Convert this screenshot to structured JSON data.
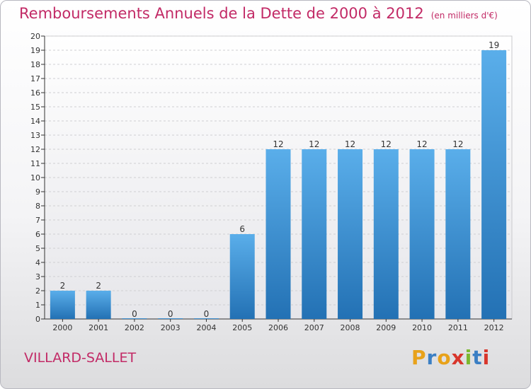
{
  "chart_data": {
    "type": "bar",
    "title": "Remboursements Annuels de la Dette de 2000 à 2012",
    "unit": "(en milliers d'€)",
    "categories": [
      "2000",
      "2001",
      "2002",
      "2003",
      "2004",
      "2005",
      "2006",
      "2007",
      "2008",
      "2009",
      "2010",
      "2011",
      "2012"
    ],
    "values": [
      2,
      2,
      0,
      0,
      0,
      6,
      12,
      12,
      12,
      12,
      12,
      12,
      19
    ],
    "ylim": [
      0,
      20
    ],
    "yticks": [
      "0",
      "1",
      "2",
      "3",
      "4",
      "5",
      "6",
      "7",
      "8",
      "9",
      "10",
      "11",
      "12",
      "13",
      "14",
      "15",
      "16",
      "17",
      "18",
      "19",
      "20"
    ],
    "grid": true,
    "bar_color": "#3d8fd6"
  },
  "footer": {
    "city": "VILLARD-SALLET",
    "logo": "Proxiti"
  },
  "logo_colors": [
    "#e8a21a",
    "#3b7fc4",
    "#e8a21a",
    "#d8362c",
    "#7cb82f",
    "#3b7fc4",
    "#d8362c"
  ]
}
